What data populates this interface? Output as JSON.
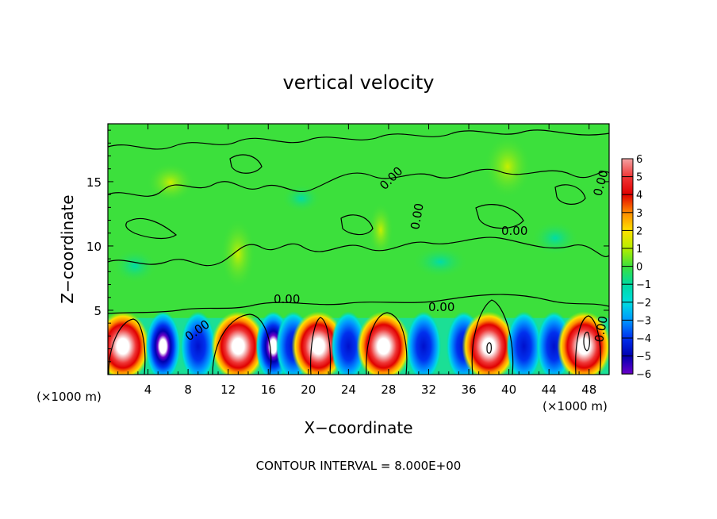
{
  "chart_data": {
    "type": "heatmap",
    "title": "vertical velocity",
    "xlabel": "X−coordinate",
    "ylabel": "Z−coordinate",
    "x_unit_left": "(×1000 m)",
    "x_unit_right": "(×1000 m)",
    "xlim": [
      0,
      50
    ],
    "ylim": [
      0,
      19.5
    ],
    "x_ticks": [
      4,
      8,
      12,
      16,
      20,
      24,
      28,
      32,
      36,
      40,
      44,
      48
    ],
    "x_tick_labels": [
      "4",
      "8",
      "12",
      "16",
      "20",
      "24",
      "28",
      "32",
      "36",
      "40",
      "44",
      "48"
    ],
    "y_ticks": [
      5,
      10,
      15
    ],
    "y_tick_labels": [
      "5",
      "10",
      "15"
    ],
    "colorbar": {
      "labels": [
        "6",
        "5",
        "4",
        "3",
        "2",
        "1",
        "0",
        "−1",
        "−2",
        "−3",
        "−4",
        "−5",
        "−6"
      ],
      "colors": [
        "#f3a3a3",
        "#ef3535",
        "#e00000",
        "#ff8a00",
        "#ffe000",
        "#b4ee00",
        "#3ce03c",
        "#00d9a0",
        "#00dede",
        "#0098ff",
        "#0030ee",
        "#0000b0",
        "#6a00c8"
      ]
    },
    "contour_labels": [
      "0.00",
      "0.00",
      "0.00",
      "0.00",
      "0.00",
      "0.00",
      "0.00",
      "0.00"
    ],
    "footer": "CONTOUR INTERVAL = 8.000E+00",
    "cells": [
      {
        "x": 1.5,
        "v": 5.3
      },
      {
        "x": 5.5,
        "v": -5.6
      },
      {
        "x": 9.0,
        "v": -1.6
      },
      {
        "x": 13.0,
        "v": 5.2
      },
      {
        "x": 16.5,
        "v": -5.6
      },
      {
        "x": 18.5,
        "v": -4.0
      },
      {
        "x": 21.0,
        "v": 4.6
      },
      {
        "x": 24.0,
        "v": -4.5
      },
      {
        "x": 27.5,
        "v": 6.0
      },
      {
        "x": 31.5,
        "v": -3.5
      },
      {
        "x": 35.5,
        "v": -3.2
      },
      {
        "x": 38.0,
        "v": 6.0
      },
      {
        "x": 41.5,
        "v": -3.5
      },
      {
        "x": 44.5,
        "v": -4.8
      },
      {
        "x": 47.5,
        "v": 6.0
      }
    ]
  }
}
